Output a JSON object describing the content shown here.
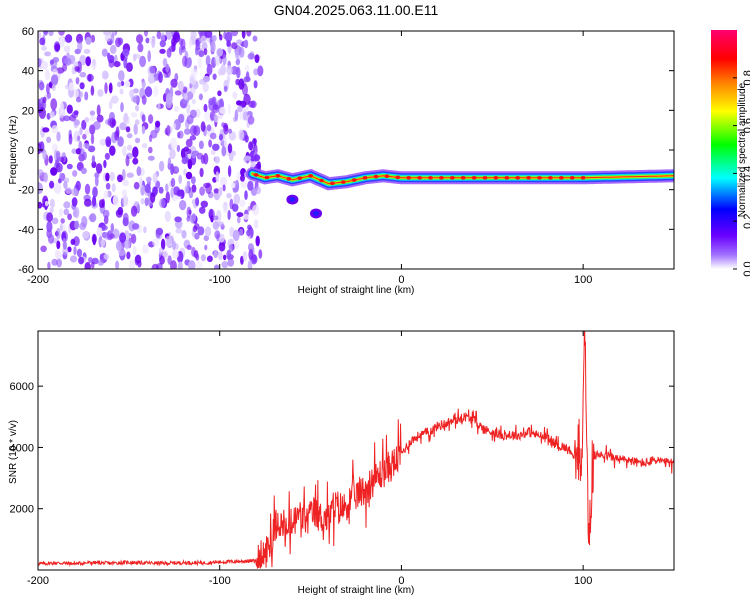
{
  "title": "GN04.2025.063.11.00.E11",
  "chart_data": [
    {
      "type": "heatmap",
      "name": "spectrogram",
      "xlabel": "Height of straight line (km)",
      "ylabel": "Frequency (Hz)",
      "xlim": [
        -200,
        150
      ],
      "ylim": [
        -60,
        60
      ],
      "xticks": [
        -200,
        -100,
        0,
        100
      ],
      "yticks": [
        60,
        40,
        20,
        0,
        -20,
        -40,
        -60
      ],
      "colorbar": {
        "label": "Normalized spectral amplitude",
        "range": [
          0,
          1
        ],
        "ticks": [
          "0.0",
          "0.2",
          "0.4",
          "0.6",
          "0.8"
        ],
        "colormap": [
          "#ffffff",
          "#7f00ff",
          "#0000ff",
          "#00ffff",
          "#00ff00",
          "#ffff00",
          "#ff7f00",
          "#ff0000",
          "#ff0080"
        ]
      },
      "noise_region": {
        "x_range": [
          -200,
          -82
        ],
        "freq_range": [
          -60,
          60
        ]
      },
      "signal_track": [
        {
          "x": -82,
          "freq": -12
        },
        {
          "x": -75,
          "freq": -14
        },
        {
          "x": -68,
          "freq": -13
        },
        {
          "x": -60,
          "freq": -15
        },
        {
          "x": -50,
          "freq": -13
        },
        {
          "x": -40,
          "freq": -17
        },
        {
          "x": -30,
          "freq": -16
        },
        {
          "x": -20,
          "freq": -14
        },
        {
          "x": -10,
          "freq": -13
        },
        {
          "x": 0,
          "freq": -14
        },
        {
          "x": 20,
          "freq": -14
        },
        {
          "x": 50,
          "freq": -14
        },
        {
          "x": 80,
          "freq": -14
        },
        {
          "x": 100,
          "freq": -14
        },
        {
          "x": 150,
          "freq": -13
        }
      ],
      "secondary_blobs": [
        {
          "x": -60,
          "freq": -25
        },
        {
          "x": -47,
          "freq": -32
        }
      ]
    },
    {
      "type": "line",
      "name": "snr",
      "xlabel": "Height of straight line (km)",
      "ylabel": "SNR (10 * v/v)",
      "xlim": [
        -200,
        150
      ],
      "ylim": [
        0,
        7800
      ],
      "xticks": [
        -200,
        -100,
        0,
        100
      ],
      "yticks": [
        2000,
        4000,
        6000
      ],
      "color": "#ee2222",
      "series": [
        {
          "x": [
            -200,
            -190,
            -180,
            -170,
            -160,
            -150,
            -140,
            -130,
            -120,
            -110,
            -100,
            -90,
            -80,
            -76,
            -72,
            -68,
            -64,
            -60,
            -56,
            -52,
            -48,
            -44,
            -40,
            -36,
            -32,
            -28,
            -24,
            -20,
            -16,
            -12,
            -8,
            -4,
            0,
            5,
            10,
            15,
            20,
            25,
            30,
            35,
            40,
            45,
            50,
            55,
            60,
            65,
            70,
            75,
            80,
            85,
            90,
            95,
            99,
            101,
            103,
            106,
            110,
            115,
            120,
            125,
            130,
            135,
            140,
            145,
            150
          ],
          "y": [
            200,
            230,
            210,
            240,
            220,
            250,
            230,
            220,
            240,
            230,
            260,
            280,
            300,
            500,
            900,
            1700,
            1200,
            1500,
            1800,
            1600,
            1900,
            1700,
            1700,
            2100,
            2000,
            2300,
            2500,
            2600,
            2900,
            3100,
            3300,
            3500,
            3800,
            4200,
            4400,
            4500,
            4700,
            4800,
            4900,
            5000,
            4900,
            4600,
            4500,
            4400,
            4400,
            4400,
            4500,
            4400,
            4300,
            4100,
            4000,
            3800,
            3200,
            7800,
            900,
            3700,
            3800,
            3700,
            3600,
            3600,
            3500,
            3500,
            3600,
            3500,
            3500
          ]
        }
      ]
    }
  ]
}
